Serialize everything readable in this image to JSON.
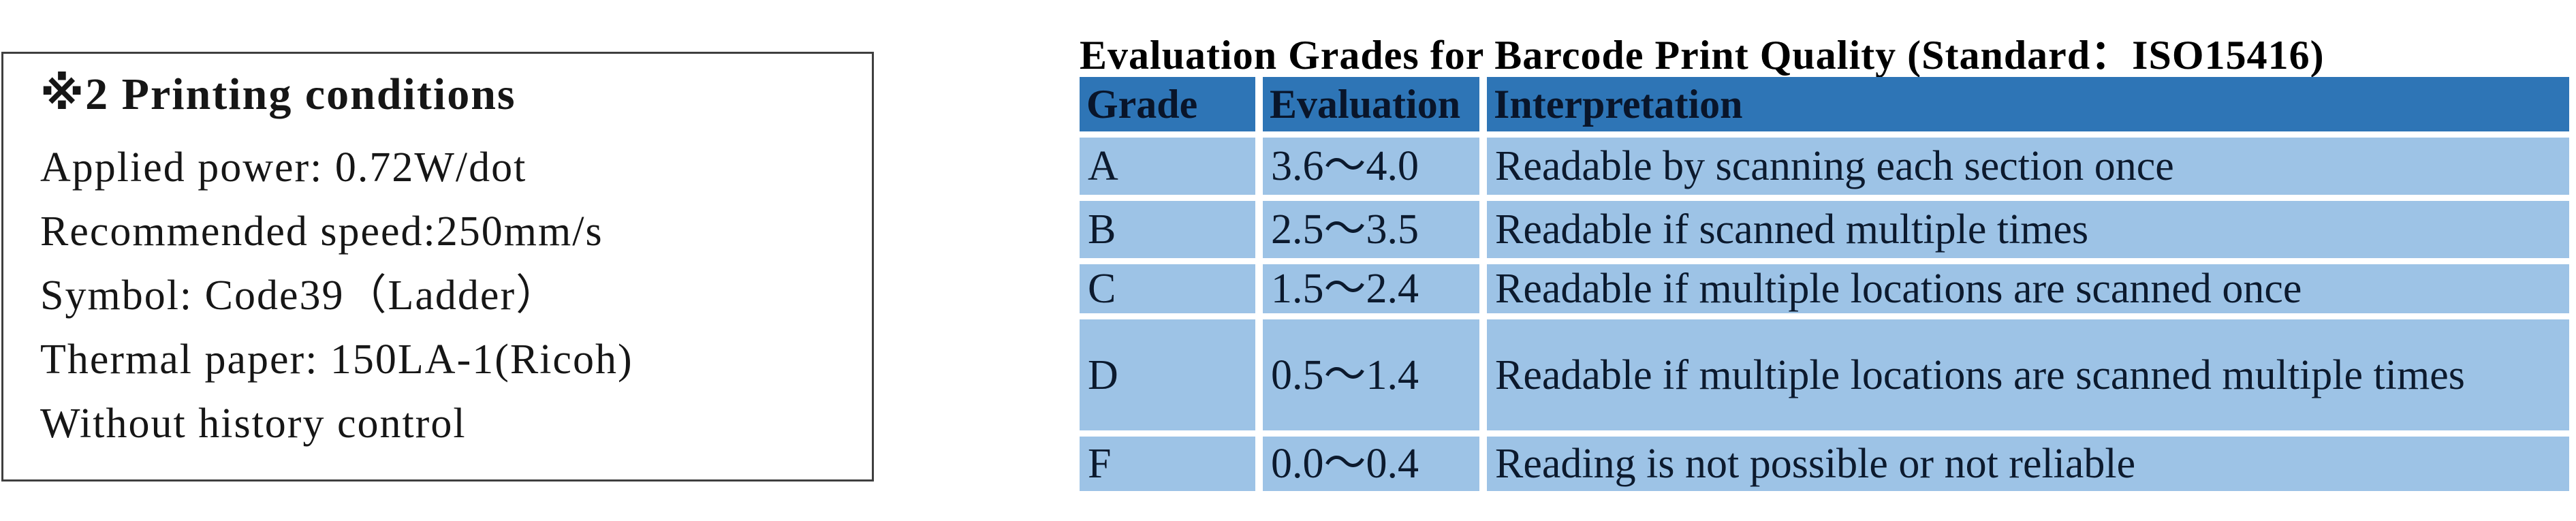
{
  "note_box": {
    "heading": "※2 Printing conditions",
    "lines": [
      "Applied power: 0.72W/dot",
      "Recommended speed:250mm/s",
      "Symbol: Code39（Ladder）",
      "Thermal paper: 150LA-1(Ricoh)",
      "Without history control"
    ]
  },
  "table": {
    "title": "Evaluation Grades for Barcode Print Quality (Standard：ISO15416)",
    "columns": [
      "Grade",
      "Evaluation",
      "Interpretation"
    ],
    "rows": [
      {
        "grade": "A",
        "evaluation": "3.6～4.0",
        "interpretation": "Readable by scanning each section once"
      },
      {
        "grade": "B",
        "evaluation": "2.5～3.5",
        "interpretation": "Readable if scanned multiple times"
      },
      {
        "grade": "C",
        "evaluation": "1.5～2.4",
        "interpretation": "Readable if multiple locations are scanned once"
      },
      {
        "grade": "D",
        "evaluation": "0.5～1.4",
        "interpretation": "Readable if multiple locations are scanned multiple times"
      },
      {
        "grade": "F",
        "evaluation": "0.0～0.4",
        "interpretation": "Reading is not possible or not reliable"
      }
    ]
  },
  "colors": {
    "header_bg": "#2e75b6",
    "row_bg": "#9dc3e6",
    "separator": "#ffffff",
    "box_border": "#3f3f3f",
    "table_text": "#0c1a2e"
  }
}
